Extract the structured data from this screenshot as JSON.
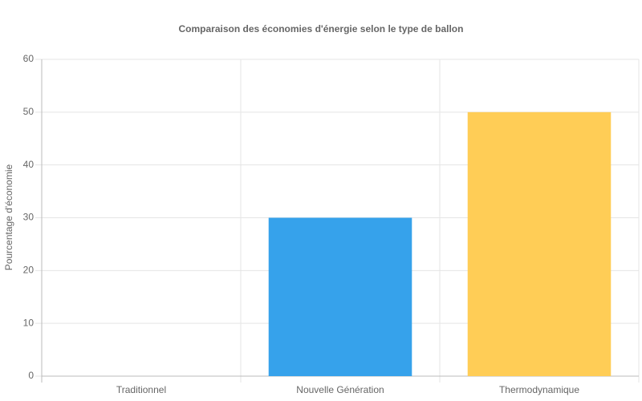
{
  "chart_data": {
    "type": "bar",
    "title": "Comparaison des économies d'énergie selon le type de ballon",
    "y_label": "Pourcentage d'économie",
    "categories": [
      "Traditionnel",
      "Nouvelle Génération",
      "Thermodynamique"
    ],
    "values": [
      0,
      30,
      50
    ],
    "colors": [
      "#ff6384",
      "#36a2eb",
      "#ffcd56"
    ],
    "ylim": [
      0,
      60
    ],
    "yticks": [
      0,
      10,
      20,
      30,
      40,
      50,
      60
    ],
    "grid": true
  }
}
